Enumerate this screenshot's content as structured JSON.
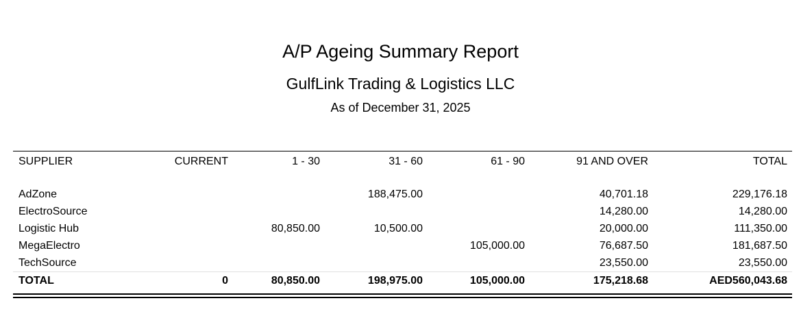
{
  "report": {
    "title": "A/P Ageing Summary Report",
    "company": "GulfLink Trading & Logistics LLC",
    "as_of": "As of December 31, 2025"
  },
  "table": {
    "headers": {
      "supplier": "SUPPLIER",
      "current": "CURRENT",
      "d1_30": "1 - 30",
      "d31_60": "31 - 60",
      "d61_90": "61 - 90",
      "d91_over": "91 AND OVER",
      "total": "TOTAL"
    },
    "rows": [
      {
        "supplier": "AdZone",
        "current": "",
        "d1_30": "",
        "d31_60": "188,475.00",
        "d61_90": "",
        "d91_over": "40,701.18",
        "total": "229,176.18"
      },
      {
        "supplier": "ElectroSource",
        "current": "",
        "d1_30": "",
        "d31_60": "",
        "d61_90": "",
        "d91_over": "14,280.00",
        "total": "14,280.00"
      },
      {
        "supplier": "Logistic Hub",
        "current": "",
        "d1_30": "80,850.00",
        "d31_60": "10,500.00",
        "d61_90": "",
        "d91_over": "20,000.00",
        "total": "111,350.00"
      },
      {
        "supplier": "MegaElectro",
        "current": "",
        "d1_30": "",
        "d31_60": "",
        "d61_90": "105,000.00",
        "d91_over": "76,687.50",
        "total": "181,687.50"
      },
      {
        "supplier": "TechSource",
        "current": "",
        "d1_30": "",
        "d31_60": "",
        "d61_90": "",
        "d91_over": "23,550.00",
        "total": "23,550.00"
      }
    ],
    "totals": {
      "supplier": "TOTAL",
      "current": "0",
      "d1_30": "80,850.00",
      "d31_60": "198,975.00",
      "d61_90": "105,000.00",
      "d91_over": "175,218.68",
      "total": "AED560,043.68"
    }
  }
}
